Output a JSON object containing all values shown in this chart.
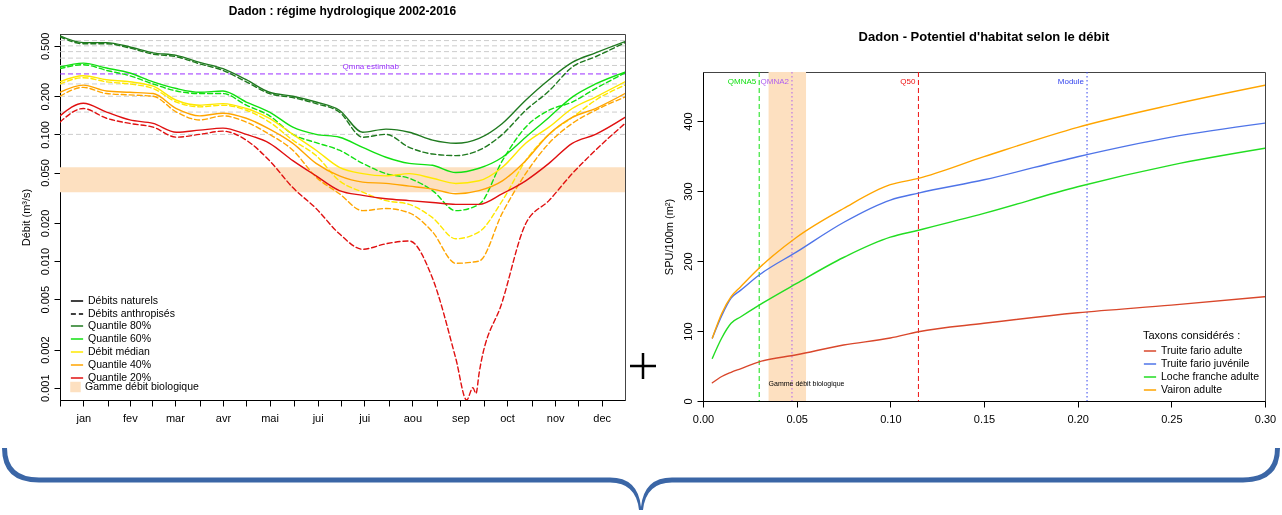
{
  "chart_data": [
    {
      "type": "line",
      "title": "Dadon : régime hydrologique 2002-2016",
      "ylabel": "Débit (m³/s)",
      "log": true,
      "x": [
        "--01-01",
        "--01-16",
        "--01-31",
        "--02-15",
        "--03-02",
        "--03-17",
        "--04-01",
        "--04-16",
        "--05-01",
        "--05-16",
        "--05-31",
        "--06-15",
        "--06-30",
        "--07-15",
        "--07-30",
        "--08-14",
        "--08-29",
        "--09-13",
        "--09-28",
        "--10-13",
        "--10-28",
        "--11-12",
        "--11-27",
        "--12-12",
        "--12-31"
      ],
      "xlim": [
        "--01-01",
        "--12-31"
      ],
      "xticks": [
        {
          "value": "--01-01",
          "label": null
        },
        {
          "value": "--01-16",
          "label": "jan"
        },
        {
          "value": "--02-01",
          "label": null
        },
        {
          "value": "--02-15",
          "label": "fev"
        },
        {
          "value": "--03-01",
          "label": null
        },
        {
          "value": "--03-16",
          "label": "mar"
        },
        {
          "value": "--04-01",
          "label": null
        },
        {
          "value": "--04-16",
          "label": "avr"
        },
        {
          "value": "--05-01",
          "label": null
        },
        {
          "value": "--05-16",
          "label": "mai"
        },
        {
          "value": "--06-01",
          "label": null
        },
        {
          "value": "--06-16",
          "label": "jui"
        },
        {
          "value": "--07-01",
          "label": null
        },
        {
          "value": "--07-16",
          "label": "jui"
        },
        {
          "value": "--08-01",
          "label": null
        },
        {
          "value": "--08-16",
          "label": "aou"
        },
        {
          "value": "--09-01",
          "label": null
        },
        {
          "value": "--09-16",
          "label": "sep"
        },
        {
          "value": "--10-01",
          "label": null
        },
        {
          "value": "--10-16",
          "label": "oct"
        },
        {
          "value": "--11-01",
          "label": null
        },
        {
          "value": "--11-16",
          "label": "nov"
        },
        {
          "value": "--12-01",
          "label": null
        },
        {
          "value": "--12-16",
          "label": "dec"
        }
      ],
      "ylim": [
        0.0008,
        0.62
      ],
      "yticks": [
        {
          "value": 0.001,
          "label": "0.001"
        },
        {
          "value": 0.002,
          "label": "0.002"
        },
        {
          "value": 0.005,
          "label": "0.005"
        },
        {
          "value": 0.01,
          "label": "0.010"
        },
        {
          "value": 0.02,
          "label": "0.020"
        },
        {
          "value": 0.05,
          "label": "0.050"
        },
        {
          "value": 0.1,
          "label": "0.100"
        },
        {
          "value": 0.2,
          "label": "0.200"
        },
        {
          "value": 0.5,
          "label": "0.500"
        }
      ],
      "legend": "bottom left",
      "annotations": [
        "Débits naturels",
        "Débits anthropisés"
      ],
      "bands": [
        {
          "axis": "y",
          "from": 0.035,
          "to": 0.055,
          "label": "Gamme débit biologique",
          "color": "#fde0c0"
        }
      ],
      "ref_lines": [
        {
          "axis": "y",
          "value": 0.1,
          "color": "#cccccc",
          "line_style": "dashed"
        },
        {
          "axis": "y",
          "value": 0.15,
          "color": "#cccccc",
          "line_style": "dashed"
        },
        {
          "axis": "y",
          "value": 0.2,
          "color": "#cccccc",
          "line_style": "dashed"
        },
        {
          "axis": "y",
          "value": 0.25,
          "color": "#cccccc",
          "line_style": "dashed"
        },
        {
          "axis": "y",
          "value": 0.35,
          "color": "#cccccc",
          "line_style": "dashed"
        },
        {
          "axis": "y",
          "value": 0.4,
          "color": "#cccccc",
          "line_style": "dashed"
        },
        {
          "axis": "y",
          "value": 0.45,
          "color": "#cccccc",
          "line_style": "dashed"
        },
        {
          "axis": "y",
          "value": 0.5,
          "color": "#cccccc",
          "line_style": "dashed"
        },
        {
          "axis": "y",
          "value": 0.55,
          "color": "#cccccc",
          "line_style": "dashed"
        },
        {
          "axis": "y",
          "value": 0.3,
          "label": "Qmna estimhab",
          "color": "#9b30ff",
          "line_style": "dashed"
        }
      ],
      "series": [
        {
          "name": "Quantile 80%",
          "color": "#1f7a1f",
          "line_style": "solid",
          "values": [
            0.6,
            0.53,
            0.53,
            0.49,
            0.44,
            0.42,
            0.37,
            0.33,
            0.27,
            0.215,
            0.2,
            0.18,
            0.155,
            0.104,
            0.11,
            0.104,
            0.09,
            0.085,
            0.093,
            0.122,
            0.186,
            0.27,
            0.37,
            0.44,
            0.54
          ]
        },
        {
          "color": "#1f7a1f",
          "line_style": "dashed",
          "values": [
            0.59,
            0.52,
            0.52,
            0.48,
            0.43,
            0.41,
            0.36,
            0.32,
            0.26,
            0.21,
            0.195,
            0.175,
            0.15,
            0.095,
            0.1,
            0.079,
            0.07,
            0.068,
            0.075,
            0.1,
            0.155,
            0.22,
            0.34,
            0.41,
            0.53
          ]
        },
        {
          "name": "Quantile 60%",
          "color": "#11e011",
          "line_style": "solid",
          "values": [
            0.34,
            0.365,
            0.334,
            0.305,
            0.26,
            0.23,
            0.215,
            0.22,
            0.18,
            0.15,
            0.114,
            0.1,
            0.095,
            0.079,
            0.066,
            0.059,
            0.057,
            0.05,
            0.054,
            0.066,
            0.095,
            0.136,
            0.197,
            0.25,
            0.31
          ]
        },
        {
          "color": "#11e011",
          "line_style": "dashed",
          "values": [
            0.33,
            0.355,
            0.32,
            0.29,
            0.25,
            0.22,
            0.21,
            0.21,
            0.17,
            0.14,
            0.1,
            0.086,
            0.075,
            0.059,
            0.049,
            0.045,
            0.036,
            0.025,
            0.028,
            0.062,
            0.114,
            0.155,
            0.18,
            0.23,
            0.305
          ]
        },
        {
          "name": "Débit médian",
          "color": "#ffe800",
          "line_style": "solid",
          "values": [
            0.26,
            0.29,
            0.27,
            0.26,
            0.24,
            0.186,
            0.17,
            0.175,
            0.16,
            0.134,
            0.1,
            0.075,
            0.055,
            0.049,
            0.047,
            0.049,
            0.045,
            0.041,
            0.043,
            0.055,
            0.085,
            0.114,
            0.16,
            0.197,
            0.26
          ]
        },
        {
          "color": "#ffe800",
          "line_style": "dashed",
          "values": [
            0.25,
            0.28,
            0.26,
            0.25,
            0.23,
            0.18,
            0.165,
            0.17,
            0.155,
            0.125,
            0.09,
            0.068,
            0.043,
            0.035,
            0.03,
            0.028,
            0.022,
            0.015,
            0.017,
            0.03,
            0.062,
            0.1,
            0.136,
            0.186,
            0.245
          ]
        },
        {
          "name": "Quantile 40%",
          "color": "#ffa500",
          "line_style": "solid",
          "values": [
            0.215,
            0.245,
            0.22,
            0.215,
            0.21,
            0.16,
            0.14,
            0.147,
            0.134,
            0.11,
            0.085,
            0.059,
            0.047,
            0.042,
            0.041,
            0.039,
            0.037,
            0.034,
            0.036,
            0.043,
            0.062,
            0.1,
            0.136,
            0.16,
            0.21
          ]
        },
        {
          "color": "#ffa500",
          "line_style": "dashed",
          "values": [
            0.2,
            0.235,
            0.21,
            0.205,
            0.2,
            0.15,
            0.13,
            0.14,
            0.125,
            0.1,
            0.075,
            0.046,
            0.034,
            0.025,
            0.026,
            0.024,
            0.017,
            0.0096,
            0.01,
            0.024,
            0.049,
            0.085,
            0.122,
            0.155,
            0.197
          ]
        },
        {
          "name": "Quantile 20%",
          "color": "#e01010",
          "line_style": "solid",
          "values": [
            0.14,
            0.176,
            0.15,
            0.13,
            0.122,
            0.104,
            0.108,
            0.112,
            0.1,
            0.085,
            0.062,
            0.047,
            0.036,
            0.033,
            0.031,
            0.03,
            0.029,
            0.028,
            0.028,
            0.034,
            0.043,
            0.059,
            0.085,
            0.1,
            0.136
          ]
        },
        {
          "color": "#e01010",
          "line_style": "dashed",
          "x": [
            "--01-01",
            "--01-16",
            "--01-31",
            "--02-15",
            "--03-02",
            "--03-17",
            "--04-01",
            "--04-16",
            "--05-01",
            "--05-16",
            "--05-31",
            "--06-15",
            "--06-30",
            "--07-15",
            "--07-30",
            "--08-14",
            "--08-29",
            "--09-13",
            "--09-20",
            "--09-24",
            "--09-26",
            "--09-28",
            "--10-13",
            "--10-28",
            "--11-12",
            "--11-27",
            "--12-12",
            "--12-31"
          ],
          "values": [
            0.125,
            0.16,
            0.134,
            0.122,
            0.114,
            0.095,
            0.1,
            0.106,
            0.09,
            0.062,
            0.038,
            0.026,
            0.0164,
            0.0124,
            0.0137,
            0.0144,
            0.0073,
            0.0017,
            0.0008,
            0.001,
            0.0009,
            0.0013,
            0.0048,
            0.0197,
            0.03,
            0.049,
            0.075,
            0.122
          ]
        }
      ]
    },
    {
      "type": "line",
      "title": "Dadon - Potentiel d'habitat selon le débit",
      "ylabel": "SPU/100m (m²)",
      "legend_title": "Taxons considérés :",
      "legend": "bottom right",
      "x": [
        0.005,
        0.01,
        0.015,
        0.02,
        0.03,
        0.05,
        0.075,
        0.1,
        0.115,
        0.15,
        0.2,
        0.25,
        0.3
      ],
      "xlim": [
        0,
        0.3
      ],
      "xticks": [
        {
          "value": 0,
          "label": "0.00"
        },
        {
          "value": 0.05,
          "label": "0.05"
        },
        {
          "value": 0.1,
          "label": "0.10"
        },
        {
          "value": 0.15,
          "label": "0.15"
        },
        {
          "value": 0.2,
          "label": "0.20"
        },
        {
          "value": 0.25,
          "label": "0.25"
        },
        {
          "value": 0.3,
          "label": "0.30"
        }
      ],
      "ylim": [
        0,
        470
      ],
      "yticks": [
        0,
        100,
        200,
        300,
        400
      ],
      "bands": [
        {
          "axis": "x",
          "from": 0.035,
          "to": 0.055,
          "color": "#fde0c0"
        }
      ],
      "annotations": [
        {
          "text": "Gamme débit biologique",
          "x": 0.035,
          "y": 25
        }
      ],
      "ref_lines": [
        {
          "axis": "x",
          "value": 0.03,
          "label": "QMNA5",
          "color": "#11e011",
          "line_style": "dashed"
        },
        {
          "axis": "x",
          "value": 0.0475,
          "label": "QMNA2",
          "color": "#b060ee",
          "line_style": "dotted"
        },
        {
          "axis": "x",
          "value": 0.115,
          "label": "Q50",
          "color": "#ee1111",
          "line_style": "dashed"
        },
        {
          "axis": "x",
          "value": 0.205,
          "label": "Module",
          "color": "#3344ee",
          "line_style": "dotted"
        }
      ],
      "series": [
        {
          "name": "Truite fario adulte",
          "color": "#d9472b",
          "values": [
            26,
            35,
            41,
            46,
            56,
            66,
            80,
            90,
            99,
            111,
            126,
            137,
            149
          ]
        },
        {
          "name": "Truite fario juvénile",
          "color": "#4f74e8",
          "values": [
            90,
            122,
            147,
            158,
            180,
            213,
            255,
            287,
            297,
            316,
            349,
            377,
            397
          ]
        },
        {
          "name": "Loche franche adulte",
          "color": "#22dd22",
          "values": [
            61,
            90,
            111,
            120,
            137,
            168,
            205,
            234,
            244,
            268,
            306,
            337,
            361
          ]
        },
        {
          "name": "Vairon adulte",
          "color": "#ffa500",
          "values": [
            90,
            125,
            149,
            163,
            190,
            234,
            275,
            309,
            318,
            349,
            391,
            423,
            451
          ]
        }
      ]
    }
  ]
}
